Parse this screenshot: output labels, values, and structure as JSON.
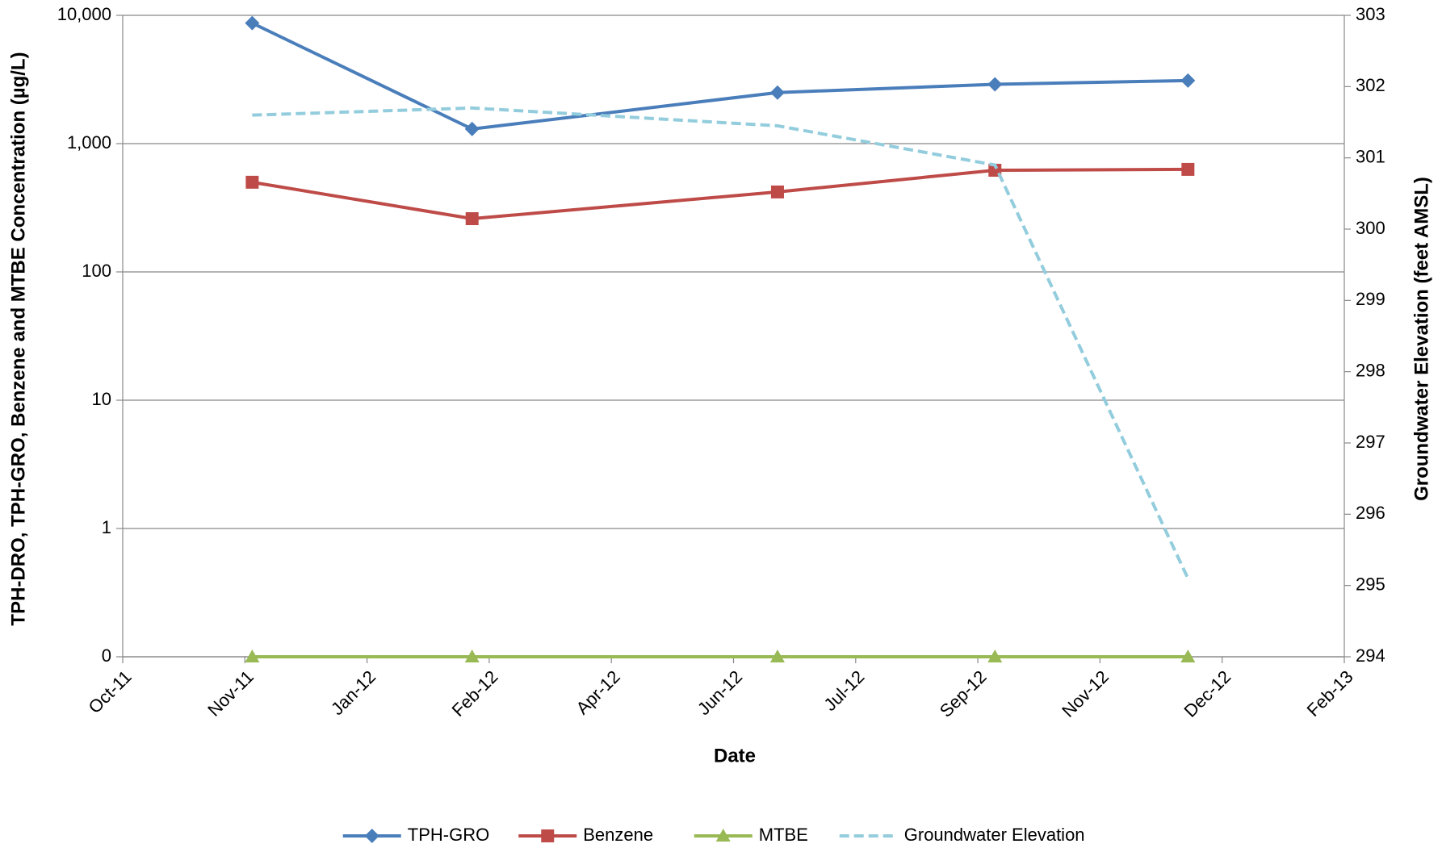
{
  "chart_data": {
    "type": "line",
    "x_label": "Date",
    "y_label": "TPH-DRO, TPH-GRO, Benzene and MTBE Concentration (µg/L)",
    "y2_label": "Groundwater Elevation (feet AMSL)",
    "x": [
      40870,
      40960,
      41085,
      41174,
      41253
    ],
    "xlim": [
      40817,
      41317
    ],
    "xticks": [
      {
        "value": 40817,
        "label": "Oct-11"
      },
      {
        "value": 40867,
        "label": "Nov-11"
      },
      {
        "value": 40917,
        "label": "Jan-12"
      },
      {
        "value": 40967,
        "label": "Feb-12"
      },
      {
        "value": 41017,
        "label": "Apr-12"
      },
      {
        "value": 41067,
        "label": "Jun-12"
      },
      {
        "value": 41117,
        "label": "Jul-12"
      },
      {
        "value": 41167,
        "label": "Sep-12"
      },
      {
        "value": 41217,
        "label": "Nov-12"
      },
      {
        "value": 41267,
        "label": "Dec-12"
      },
      {
        "value": 41317,
        "label": "Feb-13"
      }
    ],
    "ylim": [
      0.1,
      10000
    ],
    "y_log": true,
    "yticks": [
      {
        "value": 0.1,
        "label": "0"
      },
      1,
      10,
      100,
      {
        "value": 1000,
        "label": "1,000"
      },
      {
        "value": 10000,
        "label": "10,000"
      }
    ],
    "y2lim": [
      294,
      303
    ],
    "y2ticks": [
      294,
      295,
      296,
      297,
      298,
      299,
      300,
      301,
      302,
      303
    ],
    "grid": true,
    "legend": "bottom",
    "series": [
      {
        "name": "TPH-GRO",
        "color": "#4a7ebb",
        "marker": "diamond",
        "values": [
          8700,
          1300,
          2500,
          2900,
          3100
        ]
      },
      {
        "name": "Benzene",
        "color": "#be4b48",
        "marker": "square",
        "values": [
          500,
          260,
          420,
          620,
          630
        ]
      },
      {
        "name": "MTBE",
        "color": "#98b954",
        "marker": "triangle",
        "values": [
          0.1,
          0.1,
          0.1,
          0.1,
          0.1
        ]
      },
      {
        "name": "Groundwater Elevation",
        "color": "#93cddd",
        "marker": "none",
        "dashed": true,
        "axis": "y2",
        "values": [
          301.6,
          301.7,
          301.45,
          300.9,
          295.1
        ]
      }
    ]
  }
}
